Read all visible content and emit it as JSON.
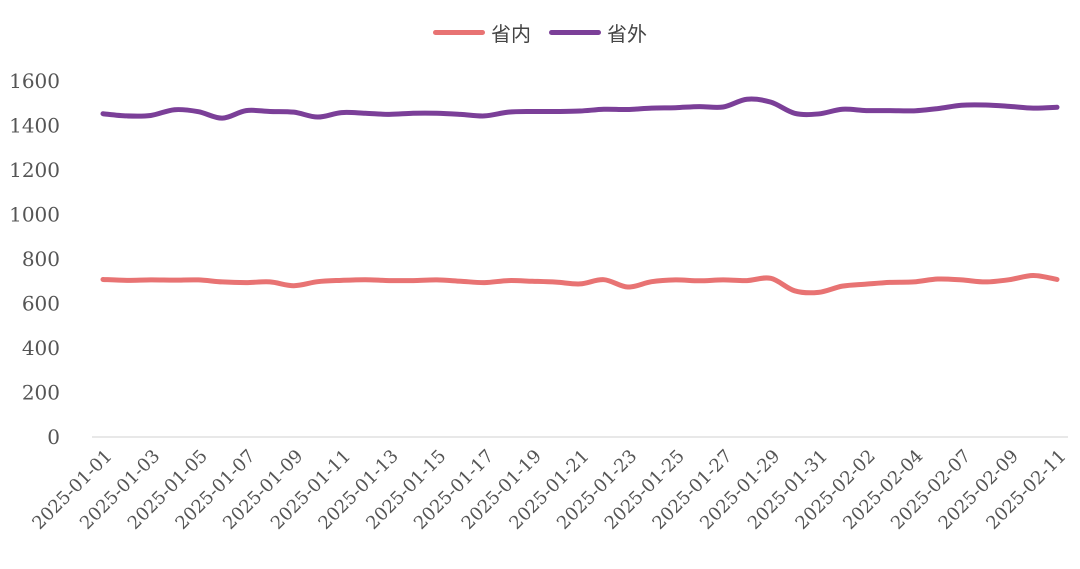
{
  "chart_data": {
    "type": "line",
    "title": "",
    "xlabel": "",
    "ylabel": "",
    "ylim": [
      0,
      1600
    ],
    "yticks": [
      0,
      200,
      400,
      600,
      800,
      1000,
      1200,
      1400,
      1600
    ],
    "grid": false,
    "legend_position": "top-center",
    "x": [
      "2025-01-01",
      "2025-01-02",
      "2025-01-03",
      "2025-01-04",
      "2025-01-05",
      "2025-01-06",
      "2025-01-07",
      "2025-01-08",
      "2025-01-09",
      "2025-01-10",
      "2025-01-11",
      "2025-01-12",
      "2025-01-13",
      "2025-01-14",
      "2025-01-15",
      "2025-01-16",
      "2025-01-17",
      "2025-01-18",
      "2025-01-19",
      "2025-01-20",
      "2025-01-21",
      "2025-01-22",
      "2025-01-23",
      "2025-01-24",
      "2025-01-25",
      "2025-01-26",
      "2025-01-27",
      "2025-01-28",
      "2025-01-29",
      "2025-01-30",
      "2025-01-31",
      "2025-02-01",
      "2025-02-02",
      "2025-02-03",
      "2025-02-04",
      "2025-02-05",
      "2025-02-07",
      "2025-02-08",
      "2025-02-09",
      "2025-02-10",
      "2025-02-11"
    ],
    "xtick_labels": [
      "2025-01-01",
      "2025-01-03",
      "2025-01-05",
      "2025-01-07",
      "2025-01-09",
      "2025-01-11",
      "2025-01-13",
      "2025-01-15",
      "2025-01-17",
      "2025-01-19",
      "2025-01-21",
      "2025-01-23",
      "2025-01-25",
      "2025-01-27",
      "2025-01-29",
      "2025-01-31",
      "2025-02-02",
      "2025-02-04",
      "2025-02-07",
      "2025-02-09",
      "2025-02-11"
    ],
    "series": [
      {
        "name": "省内",
        "color": "#E87373",
        "values": [
          708,
          704,
          706,
          705,
          706,
          697,
          694,
          697,
          680,
          698,
          704,
          707,
          703,
          703,
          706,
          700,
          694,
          703,
          700,
          696,
          688,
          707,
          674,
          698,
          706,
          702,
          706,
          703,
          713,
          657,
          650,
          678,
          687,
          695,
          697,
          710,
          706,
          697,
          707,
          726,
          708
        ]
      },
      {
        "name": "省外",
        "color": "#7B3F98",
        "values": [
          1453,
          1443,
          1445,
          1471,
          1462,
          1433,
          1467,
          1463,
          1460,
          1438,
          1458,
          1455,
          1450,
          1455,
          1455,
          1450,
          1443,
          1460,
          1463,
          1463,
          1465,
          1473,
          1472,
          1478,
          1480,
          1485,
          1483,
          1518,
          1505,
          1455,
          1452,
          1473,
          1467,
          1467,
          1466,
          1476,
          1491,
          1492,
          1486,
          1478,
          1482
        ]
      }
    ]
  }
}
